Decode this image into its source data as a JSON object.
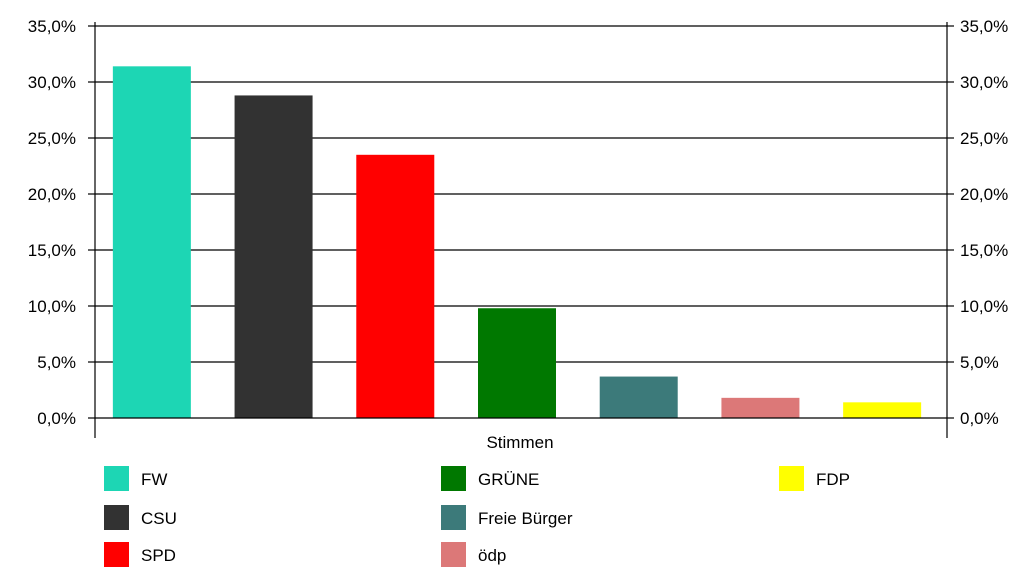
{
  "chart_data": {
    "type": "bar",
    "title": "",
    "xlabel": "",
    "ylabel": "",
    "category_label": "Stimmen",
    "ylim": [
      0,
      35
    ],
    "y_ticks": [
      {
        "value": 0,
        "label": "0,0%"
      },
      {
        "value": 5,
        "label": "5,0%"
      },
      {
        "value": 10,
        "label": "10,0%"
      },
      {
        "value": 15,
        "label": "15,0%"
      },
      {
        "value": 20,
        "label": "20,0%"
      },
      {
        "value": 25,
        "label": "25,0%"
      },
      {
        "value": 30,
        "label": "30,0%"
      },
      {
        "value": 35,
        "label": "35,0%"
      }
    ],
    "grid": true,
    "legend_placement": "bottom",
    "series": [
      {
        "name": "FW",
        "value": 31.4,
        "color": "#1DD6B4"
      },
      {
        "name": "CSU",
        "value": 28.8,
        "color": "#323232"
      },
      {
        "name": "SPD",
        "value": 23.5,
        "color": "#FF0000"
      },
      {
        "name": "GRÜNE",
        "value": 9.8,
        "color": "#007800"
      },
      {
        "name": "Freie Bürger",
        "value": 3.7,
        "color": "#3C7A7A"
      },
      {
        "name": "ödp",
        "value": 1.8,
        "color": "#DC7878"
      },
      {
        "name": "FDP",
        "value": 1.4,
        "color": "#FFFF00"
      }
    ]
  }
}
